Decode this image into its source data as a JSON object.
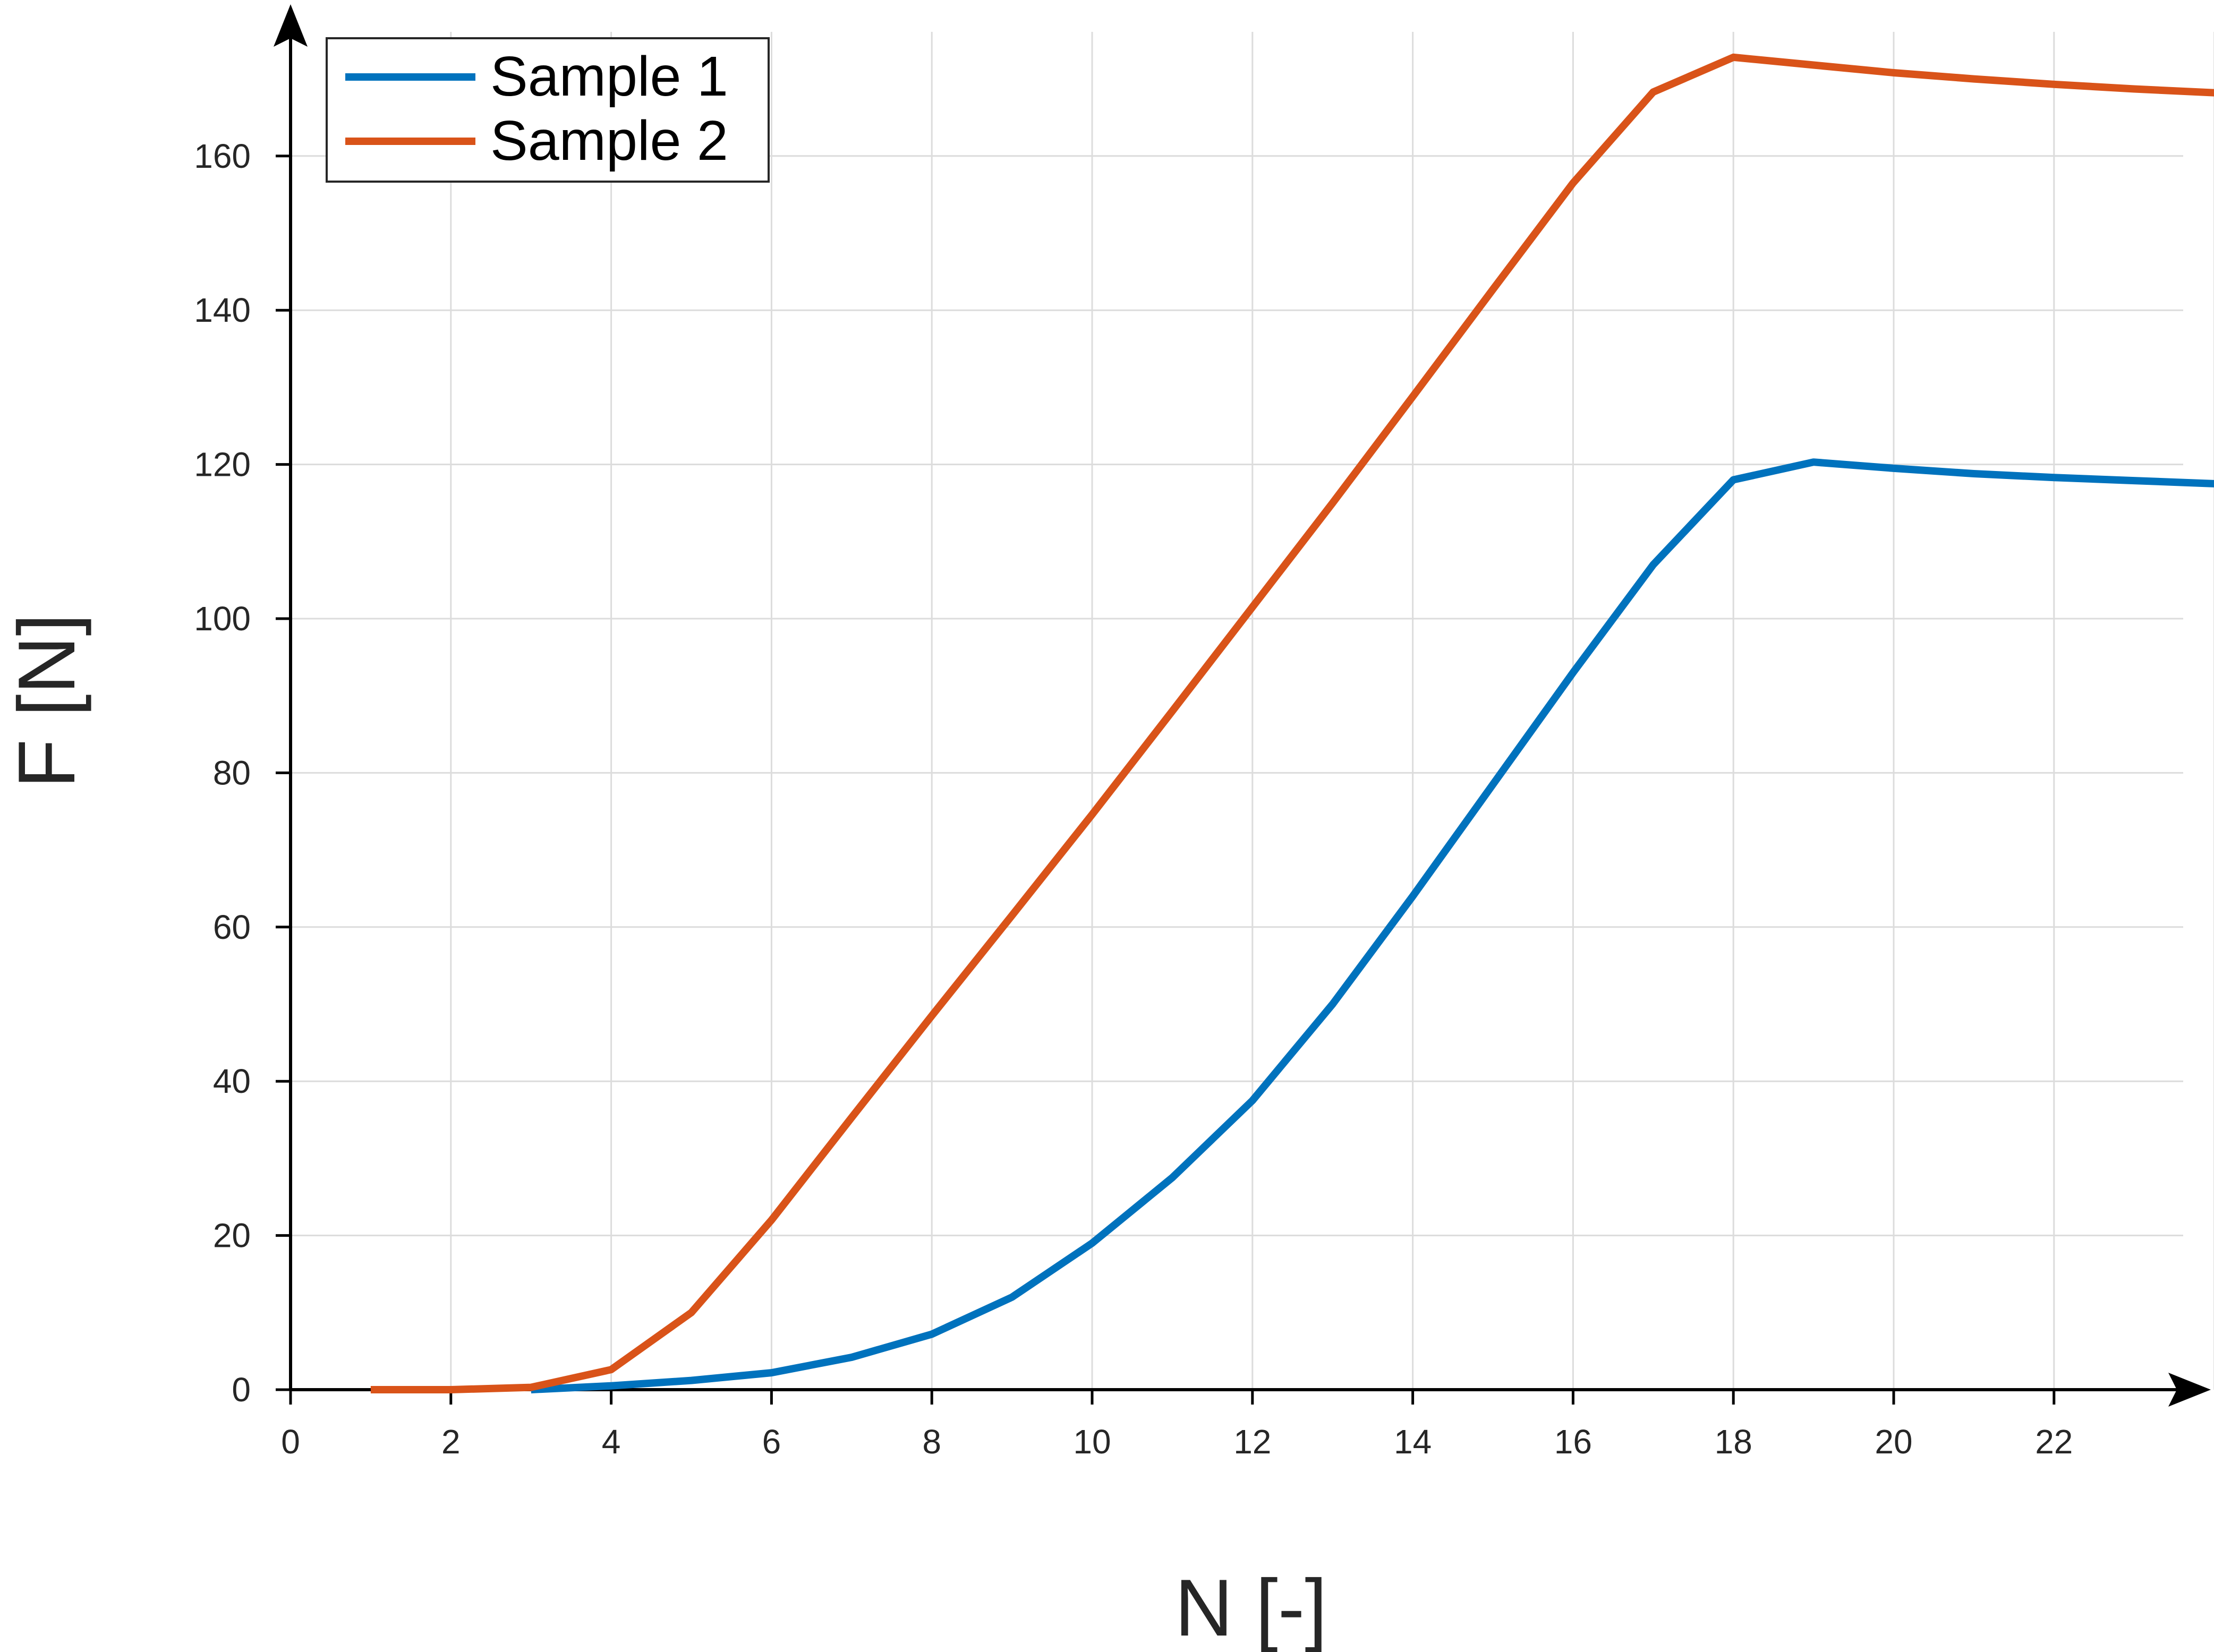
{
  "chart_data": {
    "type": "line",
    "xlabel": "N [-]",
    "ylabel": "F [N]",
    "xlim": [
      0,
      24
    ],
    "ylim": [
      0,
      175
    ],
    "xticks": [
      0,
      2,
      4,
      6,
      8,
      10,
      12,
      14,
      16,
      18,
      20,
      22
    ],
    "yticks": [
      0,
      20,
      40,
      60,
      80,
      100,
      120,
      140,
      160
    ],
    "xtick_labels": [
      "0",
      "2",
      "4",
      "6",
      "8",
      "10",
      "12",
      "14",
      "16",
      "18",
      "20",
      "22"
    ],
    "ytick_labels": [
      "0",
      "20",
      "40",
      "60",
      "80",
      "100",
      "120",
      "140",
      "160"
    ],
    "grid": true,
    "legend_position": "top-left",
    "series": [
      {
        "name": "Sample 1",
        "color": "#0072bd",
        "x": [
          3,
          4,
          5,
          6,
          7,
          8,
          9,
          10,
          11,
          12,
          13,
          14,
          15,
          16,
          17,
          18,
          19,
          20,
          21,
          22,
          23,
          24
        ],
        "y": [
          0,
          0.5,
          1.2,
          2.2,
          4.2,
          7.2,
          12,
          19,
          27.5,
          37.5,
          50,
          64,
          78.5,
          93,
          107,
          118,
          120.3,
          119.5,
          118.8,
          118.3,
          117.9,
          117.5
        ]
      },
      {
        "name": "Sample 2",
        "color": "#d95319",
        "x": [
          1,
          2,
          3,
          4,
          5,
          6,
          7,
          8,
          9,
          10,
          11,
          12,
          13,
          14,
          15,
          16,
          17,
          18,
          19,
          20,
          21,
          22,
          23,
          24
        ],
        "y": [
          0,
          0,
          0.3,
          2.6,
          10,
          22,
          35.3,
          48.5,
          61.5,
          74.6,
          88,
          101.5,
          115,
          128.8,
          142.7,
          156.5,
          168.3,
          172.8,
          171.8,
          170.8,
          170,
          169.3,
          168.7,
          168.2
        ]
      }
    ]
  }
}
